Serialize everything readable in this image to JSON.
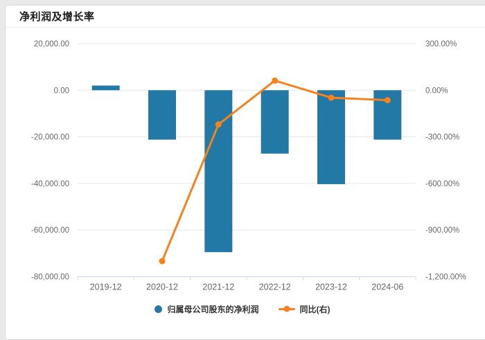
{
  "card": {
    "title": "净利润及增长率"
  },
  "colors": {
    "bar": "#2379a5",
    "line": "#f5821f",
    "grid": "#e6e6e6",
    "axis_line": "#ccd6eb",
    "axis_label": "#666666",
    "legend_text": "#333333"
  },
  "chart_data": {
    "type": "combo-bar-line",
    "title": "净利润及增长率",
    "categories": [
      "2019-12",
      "2020-12",
      "2021-12",
      "2022-12",
      "2023-12",
      "2024-06"
    ],
    "series": [
      {
        "name": "归属母公司股东的净利润",
        "type": "bar",
        "axis": "left",
        "color": "#2379a5",
        "values": [
          2000,
          -21200,
          -69500,
          -27200,
          -40300,
          -21200
        ]
      },
      {
        "name": "同比(右)",
        "type": "line",
        "axis": "right",
        "color": "#f5821f",
        "values": [
          null,
          -1100,
          -220,
          62,
          -48,
          -64
        ]
      }
    ],
    "y_left": {
      "max": 20000,
      "min": -80000,
      "tick_labels": [
        "20,000.00",
        "0.00",
        "-20,000.00",
        "-40,000.00",
        "-60,000.00",
        "-80,000.00"
      ]
    },
    "y_right": {
      "max": 300,
      "min": -1200,
      "tick_labels": [
        "300.00%",
        "0.00%",
        "-300.00%",
        "-600.00%",
        "-900.00%",
        "-1,200.00%"
      ]
    },
    "legend_position": "bottom-center",
    "grid": true
  }
}
